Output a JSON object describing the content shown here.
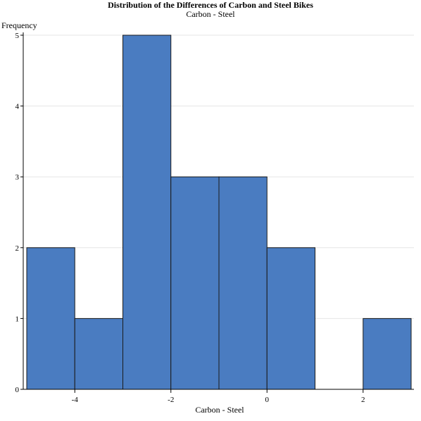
{
  "chart_data": {
    "type": "bar",
    "title": "Distribution of the Differences of Carbon and Steel Bikes",
    "subtitle": "Carbon - Steel",
    "xlabel": "Carbon - Steel",
    "ylabel": "Frequency",
    "bin_width": 1,
    "bins": [
      {
        "start": -5,
        "end": -4,
        "count": 2
      },
      {
        "start": -4,
        "end": -3,
        "count": 1
      },
      {
        "start": -3,
        "end": -2,
        "count": 5
      },
      {
        "start": -2,
        "end": -1,
        "count": 3
      },
      {
        "start": -1,
        "end": 0,
        "count": 3
      },
      {
        "start": 0,
        "end": 1,
        "count": 2
      },
      {
        "start": 1,
        "end": 2,
        "count": 0
      },
      {
        "start": 2,
        "end": 3,
        "count": 1
      }
    ],
    "xlim": [
      -5,
      3
    ],
    "ylim": [
      0,
      5
    ],
    "xticks": [
      -4,
      -2,
      0,
      2
    ],
    "yticks": [
      0,
      1,
      2,
      3,
      4,
      5
    ],
    "grid": true,
    "bar_color": "#4a7cc1",
    "bar_edge_color": "#1a1a1a",
    "grid_color": "#e6e6e6"
  }
}
